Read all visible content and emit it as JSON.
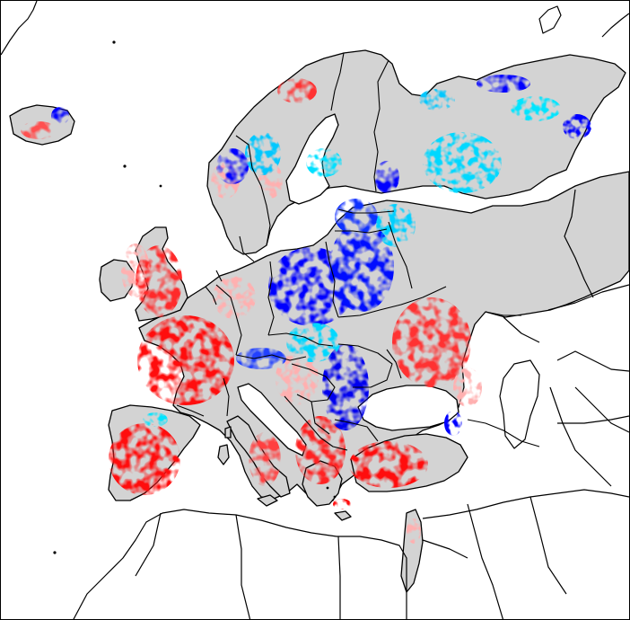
{
  "map": {
    "land_color": "#d3d3d3",
    "outside_color": "#ffffff",
    "border_color": "#000000",
    "legend_colors": {
      "strong_negative": "#0000ff",
      "weak_negative": "#00e5ff",
      "weak_positive": "#ffb0b0",
      "strong_positive": "#ff1010"
    }
  }
}
